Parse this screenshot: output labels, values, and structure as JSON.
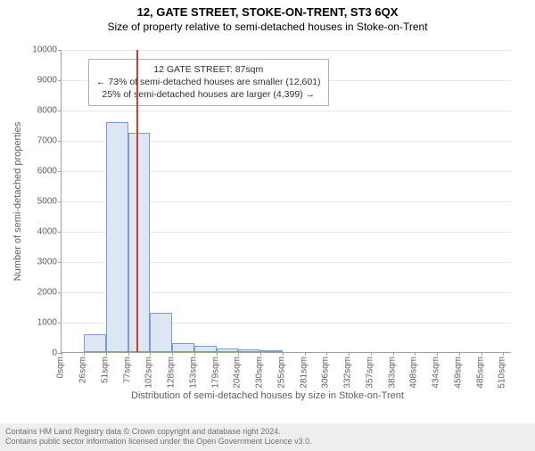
{
  "title_line1": "12, GATE STREET, STOKE-ON-TRENT, ST3 6QX",
  "title_line2": "Size of property relative to semi-detached houses in Stoke-on-Trent",
  "chart": {
    "type": "histogram",
    "ylabel": "Number of semi-detached properties",
    "xlabel": "Distribution of semi-detached houses by size in Stoke-on-Trent",
    "ylim": [
      0,
      10000
    ],
    "ytick_step": 1000,
    "xlim": [
      0,
      520
    ],
    "xtick_labels": [
      "0sqm",
      "26sqm",
      "51sqm",
      "77sqm",
      "102sqm",
      "128sqm",
      "153sqm",
      "179sqm",
      "204sqm",
      "230sqm",
      "255sqm",
      "281sqm",
      "306sqm",
      "332sqm",
      "357sqm",
      "383sqm",
      "408sqm",
      "434sqm",
      "459sqm",
      "485sqm",
      "510sqm"
    ],
    "xtick_positions": [
      0,
      26,
      51,
      77,
      102,
      128,
      153,
      179,
      204,
      230,
      255,
      281,
      306,
      332,
      357,
      383,
      408,
      434,
      459,
      485,
      510
    ],
    "bar_edges": [
      0,
      26,
      51,
      77,
      102,
      128,
      153,
      179,
      204,
      230,
      255,
      281,
      306,
      332,
      357,
      383,
      408,
      434,
      459,
      485,
      510
    ],
    "bar_values": [
      0,
      600,
      7600,
      7250,
      1300,
      300,
      200,
      120,
      80,
      50,
      0,
      0,
      0,
      0,
      0,
      0,
      0,
      0,
      0,
      0
    ],
    "bar_fill": "#dce6f4",
    "bar_stroke": "#7a9bcf",
    "grid_color": "#e8e8e8",
    "axis_color": "#a0a0a0",
    "tick_font_size": 10,
    "label_font_size": 11,
    "reference_line": {
      "value": 87,
      "color": "#d04030"
    },
    "annotation": {
      "line1": "12 GATE STREET: 87sqm",
      "line2": "← 73% of semi-detached houses are smaller (12,601)",
      "line3": "25% of semi-detached houses are larger (4,399) →"
    }
  },
  "footer": {
    "line1": "Contains HM Land Registry data © Crown copyright and database right 2024.",
    "line2": "Contains public sector information licensed under the Open Government Licence v3.0."
  }
}
